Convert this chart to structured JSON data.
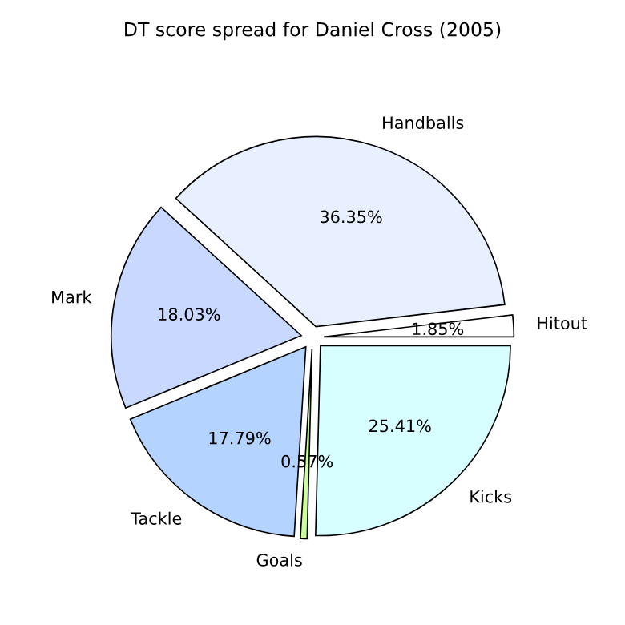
{
  "chart_data": {
    "type": "pie",
    "title": "DT score spread for Daniel Cross (2005)",
    "categories": [
      "Hitout",
      "Handballs",
      "Mark",
      "Tackle",
      "Goals",
      "Kicks"
    ],
    "values": [
      1.85,
      36.35,
      18.03,
      17.79,
      0.57,
      25.41
    ],
    "value_labels": [
      "1.85%",
      "36.35%",
      "18.03%",
      "17.79%",
      "0.57%",
      "25.41%"
    ],
    "colors": [
      "#ffffff",
      "#e8f0ff",
      "#c8d8ff",
      "#b4d4ff",
      "#ccff99",
      "#d8ffff"
    ],
    "legend": false
  }
}
